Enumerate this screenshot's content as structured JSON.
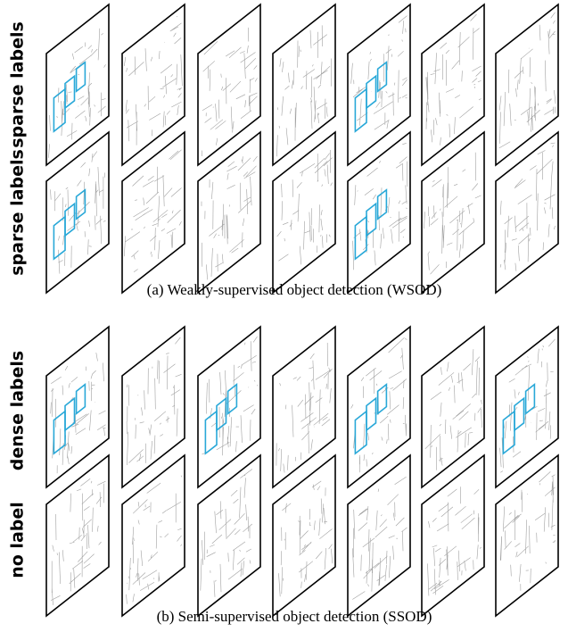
{
  "rows": [
    {
      "label": "sparse labels"
    },
    {
      "label": "sparse labels"
    },
    {
      "label": "dense labels"
    },
    {
      "label": "no label"
    }
  ],
  "captions": [
    "(a) Weakly-supervised object detection (WSOD)",
    "(b) Semi-supervised object detection (SSOD)"
  ]
}
